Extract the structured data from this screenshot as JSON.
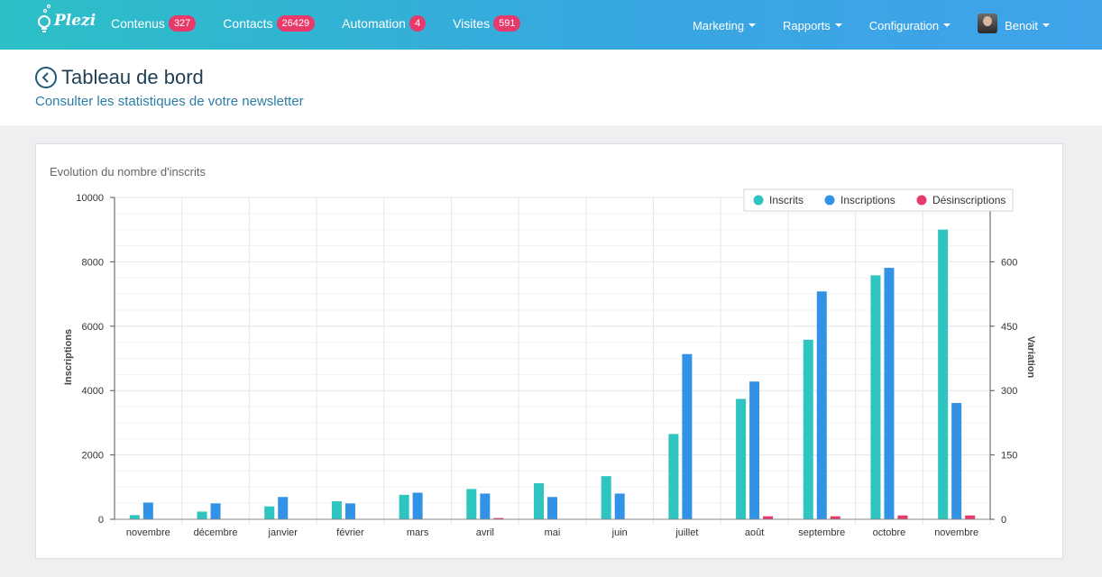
{
  "nav": {
    "logo_text": "Plezi",
    "items": [
      {
        "label": "Contenus",
        "badge": "327"
      },
      {
        "label": "Contacts",
        "badge": "26429"
      },
      {
        "label": "Automation",
        "badge": "4"
      },
      {
        "label": "Visites",
        "badge": "591"
      }
    ],
    "menus": [
      {
        "label": "Marketing"
      },
      {
        "label": "Rapports"
      },
      {
        "label": "Configuration"
      }
    ],
    "user_name": "Benoit"
  },
  "header": {
    "title": "Tableau de bord",
    "subtitle": "Consulter les statistiques de votre newsletter"
  },
  "colors": {
    "inscrits": "#2ec4bf",
    "inscriptions": "#3293e6",
    "desinscriptions": "#e8396b",
    "accent": "#e8396b"
  },
  "chart_data": {
    "type": "bar",
    "title": "Evolution du nombre d'inscrits",
    "categories": [
      "novembre",
      "décembre",
      "janvier",
      "février",
      "mars",
      "avril",
      "mai",
      "juin",
      "juillet",
      "août",
      "septembre",
      "octobre",
      "novembre"
    ],
    "ylabel": "Inscriptions",
    "ylabel_right": "Variation",
    "ylim": [
      0,
      10000
    ],
    "ylim_right": [
      0,
      750
    ],
    "yticks": [
      "0",
      "2000",
      "4000",
      "6000",
      "8000",
      "10000"
    ],
    "yticks_right": [
      "0",
      "150",
      "300",
      "450",
      "600"
    ],
    "legend_position": "top-right",
    "series": [
      {
        "name": "Inscrits",
        "axis": "left",
        "values": [
          130,
          240,
          400,
          560,
          760,
          940,
          1120,
          1340,
          2650,
          3740,
          5580,
          7580,
          9000
        ]
      },
      {
        "name": "Inscriptions",
        "axis": "right",
        "values": [
          39,
          37,
          52,
          37,
          62,
          60,
          52,
          60,
          385,
          321,
          531,
          586,
          271
        ]
      },
      {
        "name": "Désinscriptions",
        "axis": "right",
        "values": [
          0,
          0,
          0,
          0,
          0,
          3,
          0,
          0,
          0,
          7,
          7,
          9,
          9
        ]
      }
    ]
  }
}
